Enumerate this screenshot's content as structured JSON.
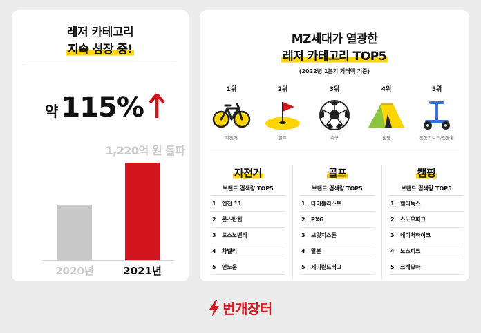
{
  "left_card": {
    "title_line1": "레저 카테고리",
    "title_line2": "지속 성장 중!",
    "growth_prefix": "약",
    "growth_value": "115%",
    "bar_annotation": "1,220억 원 돌파",
    "bars": [
      {
        "year_label": "2020년",
        "relative_value": 0.57,
        "color": "#c8c8c8"
      },
      {
        "year_label": "2021년",
        "relative_value": 1.0,
        "color": "#d2151c"
      }
    ]
  },
  "right_card": {
    "title_line1": "MZ세대가 열광한",
    "title_line2": "레저 카테고리  TOP5",
    "basis_note": "(2022년 1분기 거래액 기준)",
    "ranking": [
      {
        "rank": "1위",
        "category": "자전거",
        "icon": "bicycle-icon"
      },
      {
        "rank": "2위",
        "category": "골프",
        "icon": "golf-flag-icon"
      },
      {
        "rank": "3위",
        "category": "축구",
        "icon": "soccer-ball-icon"
      },
      {
        "rank": "4위",
        "category": "캠핑",
        "icon": "camping-tent-icon"
      },
      {
        "rank": "5위",
        "category": "전동킥보드/전동휠",
        "icon": "electric-wheel-icon"
      }
    ],
    "brand_sections": [
      {
        "title": "자전거",
        "subtitle": "브랜드 검색량 TOP5",
        "items": [
          {
            "num": "1",
            "name": "엔진 11"
          },
          {
            "num": "2",
            "name": "콘스탄틴"
          },
          {
            "num": "3",
            "name": "도스노벤타"
          },
          {
            "num": "4",
            "name": "차벨리"
          },
          {
            "num": "5",
            "name": "언노운"
          }
        ]
      },
      {
        "title": "골프",
        "subtitle": "브랜드 검색량 TOP5",
        "items": [
          {
            "num": "1",
            "name": "타이틀리스트"
          },
          {
            "num": "2",
            "name": "PXG"
          },
          {
            "num": "3",
            "name": "브릿지스톤"
          },
          {
            "num": "4",
            "name": "말본"
          },
          {
            "num": "5",
            "name": "제이린드버그"
          }
        ]
      },
      {
        "title": "캠핑",
        "subtitle": "브랜드 검색량 TOP5",
        "items": [
          {
            "num": "1",
            "name": "헬리녹스"
          },
          {
            "num": "2",
            "name": "스노우피크"
          },
          {
            "num": "3",
            "name": "네이처하이크"
          },
          {
            "num": "4",
            "name": "노스피크"
          },
          {
            "num": "5",
            "name": "크레모아"
          }
        ]
      }
    ]
  },
  "footer": {
    "logo_text": "번개장터",
    "logo_icon": "lightning-bolt-icon",
    "brand_color": "#d8191f"
  },
  "colors": {
    "highlight": "#ffd400",
    "accent_red": "#d2151c",
    "background": "#ececec"
  }
}
